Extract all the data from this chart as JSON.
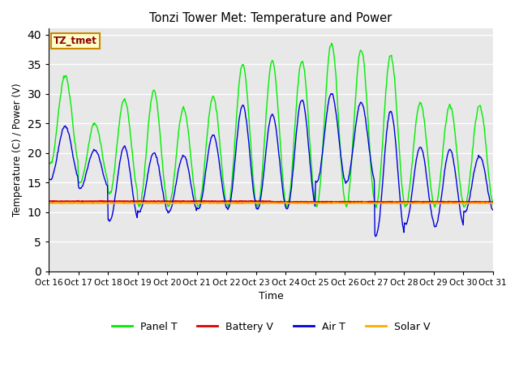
{
  "title": "Tonzi Tower Met: Temperature and Power",
  "xlabel": "Time",
  "ylabel": "Temperature (C) / Power (V)",
  "label_box": "TZ_tmet",
  "ylim": [
    0,
    41
  ],
  "yticks": [
    0,
    5,
    10,
    15,
    20,
    25,
    30,
    35,
    40
  ],
  "xtick_labels": [
    "Oct 16",
    "Oct 17",
    "Oct 18",
    "Oct 19",
    "Oct 20",
    "Oct 21",
    "Oct 22",
    "Oct 23",
    "Oct 24",
    "Oct 25",
    "Oct 26",
    "Oct 27",
    "Oct 28",
    "Oct 29",
    "Oct 30",
    "Oct 31"
  ],
  "bg_color": "#e8e8e8",
  "panel_T_color": "#00ee00",
  "battery_V_color": "#dd0000",
  "air_T_color": "#0000dd",
  "solar_V_color": "#ffaa00",
  "legend_labels": [
    "Panel T",
    "Battery V",
    "Air T",
    "Solar V"
  ],
  "num_days": 15,
  "panel_T_peaks": [
    33,
    25,
    29,
    30.5,
    27.5,
    29.5,
    35,
    35.5,
    35.5,
    38.5,
    37.5,
    36.5,
    28.5,
    28,
    28,
    27.5
  ],
  "panel_T_troughs": [
    18,
    15,
    13,
    11,
    11,
    11,
    11,
    11,
    11,
    11,
    11,
    11,
    11,
    11,
    11,
    11
  ],
  "air_T_peaks": [
    24.5,
    20.5,
    21,
    20,
    19.5,
    23,
    28,
    26.5,
    29,
    30,
    28.5,
    27,
    21,
    20.5,
    19.5,
    19.5
  ],
  "air_T_troughs": [
    15.5,
    14,
    8.5,
    10,
    10,
    10.5,
    10.5,
    10.5,
    10.5,
    15,
    15,
    6,
    8,
    7.5,
    10,
    10
  ],
  "battery_V_base": 11.8,
  "solar_V_base": 11.5,
  "figsize": [
    6.4,
    4.8
  ],
  "dpi": 100
}
